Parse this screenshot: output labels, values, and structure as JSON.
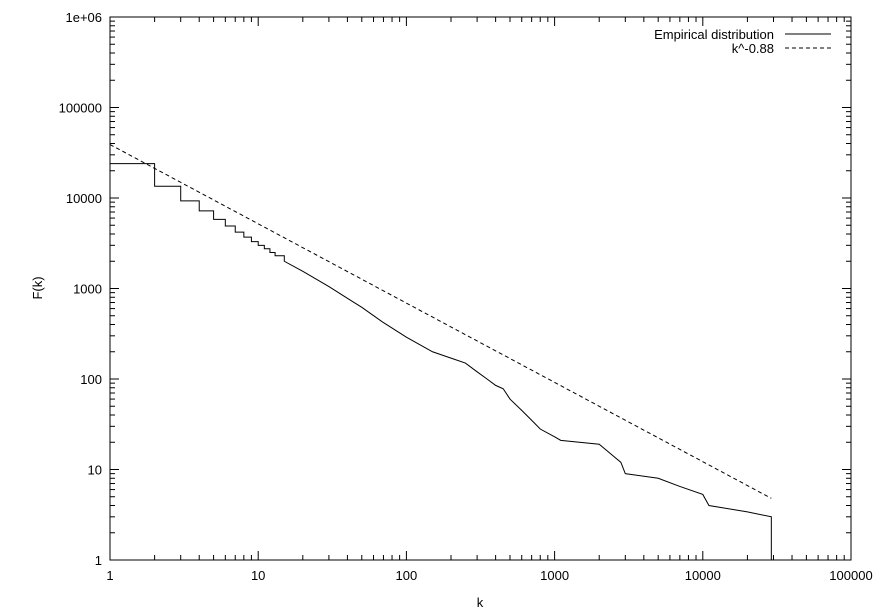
{
  "chart_data": {
    "type": "line",
    "title": "",
    "xlabel": "k",
    "ylabel": "F(k)",
    "xscale": "log",
    "yscale": "log",
    "xlim": [
      1,
      100000
    ],
    "ylim": [
      1,
      1000000
    ],
    "x_tick_labels": [
      "1",
      "10",
      "100",
      "1000",
      "10000",
      "100000"
    ],
    "y_tick_labels": [
      "1",
      "10",
      "100",
      "1000",
      "10000",
      "100000",
      "1e+06"
    ],
    "grid": false,
    "legend_position": "top-right",
    "series": [
      {
        "name": "Empirical distribution",
        "style": "solid",
        "color": "#000000",
        "points": [
          [
            1,
            24000
          ],
          [
            2,
            24000
          ],
          [
            2,
            13500
          ],
          [
            3,
            13500
          ],
          [
            3,
            9300
          ],
          [
            4,
            9300
          ],
          [
            4,
            7200
          ],
          [
            5,
            7200
          ],
          [
            5,
            5800
          ],
          [
            6,
            5800
          ],
          [
            6,
            4900
          ],
          [
            7,
            4900
          ],
          [
            7,
            4200
          ],
          [
            8,
            4200
          ],
          [
            8,
            3700
          ],
          [
            9,
            3700
          ],
          [
            9,
            3300
          ],
          [
            10,
            3300
          ],
          [
            10,
            3000
          ],
          [
            11,
            3000
          ],
          [
            11,
            2750
          ],
          [
            12,
            2750
          ],
          [
            12,
            2500
          ],
          [
            13,
            2500
          ],
          [
            13,
            2300
          ],
          [
            15,
            2300
          ],
          [
            15,
            2000
          ],
          [
            20,
            1550
          ],
          [
            30,
            1050
          ],
          [
            40,
            780
          ],
          [
            50,
            620
          ],
          [
            70,
            420
          ],
          [
            100,
            290
          ],
          [
            150,
            200
          ],
          [
            200,
            170
          ],
          [
            250,
            150
          ],
          [
            300,
            120
          ],
          [
            350,
            100
          ],
          [
            400,
            85
          ],
          [
            450,
            78
          ],
          [
            500,
            60
          ],
          [
            600,
            45
          ],
          [
            700,
            35
          ],
          [
            800,
            28
          ],
          [
            1000,
            23
          ],
          [
            1100,
            21
          ],
          [
            2000,
            19
          ],
          [
            2500,
            14
          ],
          [
            2800,
            12
          ],
          [
            3000,
            9
          ],
          [
            5000,
            8
          ],
          [
            7000,
            6.5
          ],
          [
            10000,
            5.3
          ],
          [
            11000,
            4
          ],
          [
            20000,
            3.4
          ],
          [
            29000,
            3
          ],
          [
            29000,
            1
          ]
        ]
      },
      {
        "name": "k^-0.88",
        "style": "dashed",
        "color": "#000000",
        "points": [
          [
            1,
            39000
          ],
          [
            29000,
            4.8
          ]
        ]
      }
    ]
  }
}
